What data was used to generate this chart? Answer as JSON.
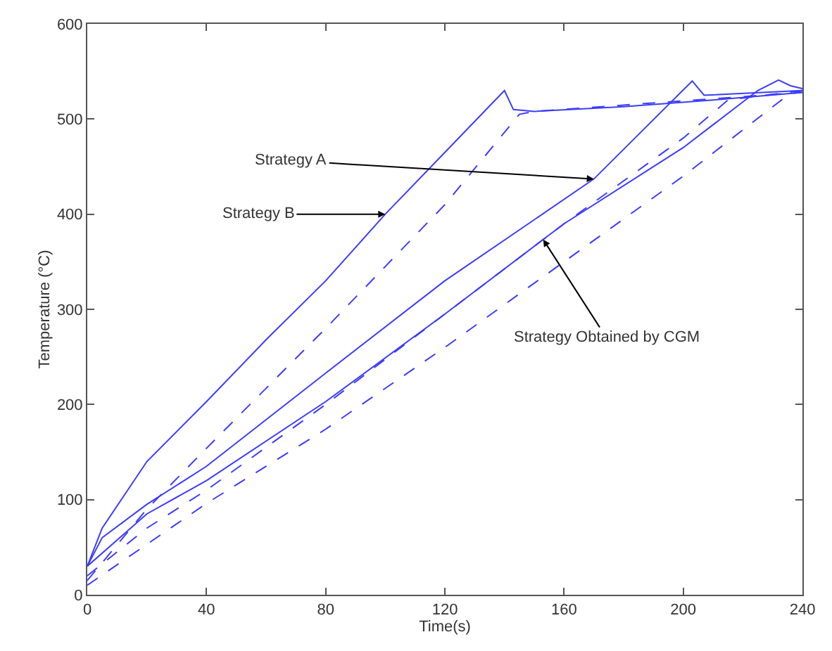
{
  "chart_data": {
    "type": "line",
    "xlabel": "Time(s)",
    "ylabel": "Temperature (°C)",
    "xlim": [
      0,
      240
    ],
    "xticks": [
      0,
      40,
      80,
      120,
      160,
      200,
      240
    ],
    "ylim": [
      0,
      600
    ],
    "yticks": [
      0,
      100,
      200,
      300,
      400,
      500,
      600
    ],
    "series": [
      {
        "color": "#3c3cff",
        "line_style": "solid",
        "x": [
          0,
          5,
          20,
          40,
          60,
          80,
          100,
          120,
          140,
          143,
          150,
          180,
          210,
          240
        ],
        "values": [
          30,
          70,
          140,
          203,
          268,
          330,
          400,
          465,
          530,
          510,
          508,
          513,
          520,
          528
        ]
      },
      {
        "color": "#3c3cff",
        "line_style": "dashed",
        "x": [
          0,
          20,
          40,
          80,
          100,
          120,
          145,
          150,
          240
        ],
        "values": [
          15,
          90,
          154,
          280,
          345,
          410,
          505,
          508,
          528
        ]
      },
      {
        "color": "#3c3cff",
        "line_style": "solid",
        "x": [
          0,
          5,
          20,
          40,
          80,
          120,
          170,
          203,
          207,
          240
        ],
        "values": [
          30,
          60,
          95,
          135,
          233,
          330,
          437,
          540,
          525,
          530
        ]
      },
      {
        "color": "#3c3cff",
        "line_style": "dashed",
        "x": [
          0,
          20,
          40,
          80,
          120,
          160,
          200,
          215,
          240
        ],
        "values": [
          20,
          70,
          110,
          200,
          295,
          390,
          480,
          520,
          530
        ]
      },
      {
        "color": "#3c3cff",
        "line_style": "solid",
        "x": [
          0,
          20,
          40,
          80,
          120,
          160,
          200,
          225,
          232,
          236,
          240
        ],
        "values": [
          30,
          85,
          120,
          203,
          295,
          390,
          470,
          530,
          541,
          535,
          532
        ]
      },
      {
        "color": "#3c3cff",
        "line_style": "dashed",
        "x": [
          0,
          40,
          80,
          120,
          160,
          200,
          235,
          240
        ],
        "values": [
          10,
          96,
          174,
          260,
          350,
          440,
          525,
          530
        ]
      }
    ],
    "annotations": [
      {
        "text": "Strategy A",
        "x": 170,
        "y": 437
      },
      {
        "text": "Strategy B",
        "x": 100,
        "y": 400
      },
      {
        "text": "Strategy Obtained by CGM",
        "x": 153,
        "y": 373.4
      }
    ]
  }
}
